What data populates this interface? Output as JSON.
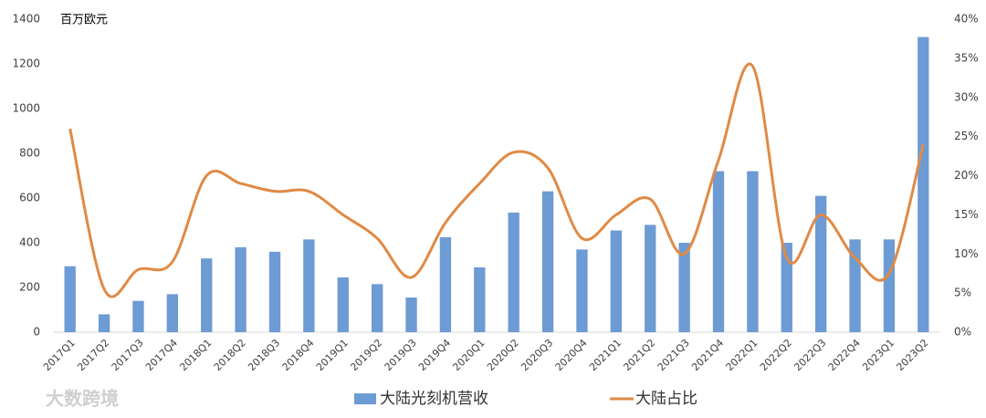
{
  "chart_data": {
    "type": "combo",
    "unit_label": "百万欧元",
    "watermark": "大数跨境",
    "categories": [
      "2017Q1",
      "2017Q2",
      "2017Q3",
      "2017Q4",
      "2018Q1",
      "2018Q2",
      "2018Q3",
      "2018Q4",
      "2019Q1",
      "2019Q2",
      "2019Q3",
      "2019Q4",
      "2020Q1",
      "2020Q2",
      "2020Q3",
      "2020Q4",
      "2021Q1",
      "2021Q2",
      "2021Q3",
      "2021Q4",
      "2022Q1",
      "2022Q2",
      "2022Q3",
      "2022Q4",
      "2023Q1",
      "2023Q2"
    ],
    "series": [
      {
        "name": "大陆光刻机营收",
        "type": "bar",
        "color": "#6d9bd4",
        "values": [
          295,
          80,
          140,
          170,
          330,
          380,
          360,
          415,
          245,
          215,
          155,
          425,
          290,
          535,
          630,
          370,
          455,
          480,
          400,
          720,
          720,
          400,
          610,
          415,
          415,
          1320
        ]
      },
      {
        "name": "大陆占比",
        "type": "line",
        "axis": "y2",
        "color": "#e08a45",
        "values": [
          26,
          5.5,
          8,
          9,
          20,
          19,
          18,
          18,
          15,
          12,
          7,
          14,
          19,
          23,
          21,
          12,
          15,
          17,
          10,
          22,
          34,
          9.5,
          15,
          9.5,
          7.5,
          24
        ]
      }
    ],
    "ylim": [
      0,
      1400
    ],
    "yticks": [
      0,
      200,
      400,
      600,
      800,
      1000,
      1200,
      1400
    ],
    "y2lim": [
      0,
      40
    ],
    "y2ticks": [
      {
        "value": 0,
        "label": "0%"
      },
      {
        "value": 5,
        "label": "5%"
      },
      {
        "value": 10,
        "label": "10%"
      },
      {
        "value": 15,
        "label": "15%"
      },
      {
        "value": 20,
        "label": "20%"
      },
      {
        "value": 25,
        "label": "25%"
      },
      {
        "value": 30,
        "label": "30%"
      },
      {
        "value": 35,
        "label": "35%"
      },
      {
        "value": 40,
        "label": "40%"
      }
    ]
  }
}
